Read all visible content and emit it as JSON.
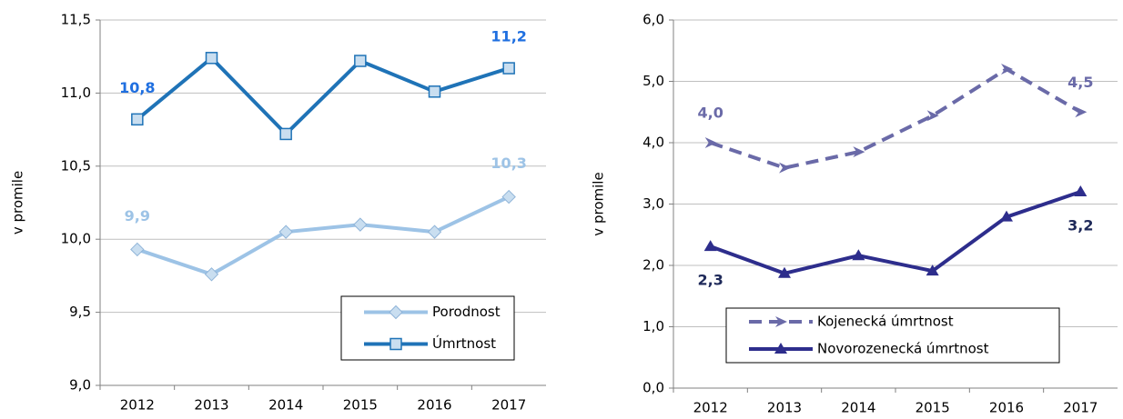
{
  "chart_data": [
    {
      "type": "line",
      "ylabel": "v promile",
      "categories": [
        "2012",
        "2013",
        "2014",
        "2015",
        "2016",
        "2017"
      ],
      "ylim": [
        9,
        11.5
      ],
      "yticks": [
        {
          "value": 9,
          "label": "9,0"
        },
        {
          "value": 9.5,
          "label": "9,5"
        },
        {
          "value": 10,
          "label": "10,0"
        },
        {
          "value": 10.5,
          "label": "10,5"
        },
        {
          "value": 11,
          "label": "11,0"
        },
        {
          "value": 11.5,
          "label": "11,5"
        }
      ],
      "grid": true,
      "legend": "lower right",
      "series": [
        {
          "name": "Porodnost",
          "color": "#9dc3e6",
          "marker": "diamond",
          "dashed": false,
          "values": [
            9.93,
            9.76,
            10.05,
            10.1,
            10.05,
            10.29
          ],
          "value_labels": [
            "9,9",
            null,
            null,
            null,
            null,
            "10,3"
          ]
        },
        {
          "name": "Úmrtnost",
          "color": "#1f73b7",
          "marker": "square",
          "dashed": false,
          "values": [
            10.82,
            11.24,
            10.72,
            11.22,
            11.01,
            11.17
          ],
          "value_labels": [
            "10,8",
            null,
            null,
            null,
            null,
            "11,2"
          ]
        }
      ]
    },
    {
      "type": "line",
      "ylabel": "v promile",
      "categories": [
        "2012",
        "2013",
        "2014",
        "2015",
        "2016",
        "2017"
      ],
      "ylim": [
        0,
        6
      ],
      "yticks": [
        {
          "value": 0,
          "label": "0,0"
        },
        {
          "value": 1,
          "label": "1,0"
        },
        {
          "value": 2,
          "label": "2,0"
        },
        {
          "value": 3,
          "label": "3,0"
        },
        {
          "value": 4,
          "label": "4,0"
        },
        {
          "value": 5,
          "label": "5,0"
        },
        {
          "value": 6,
          "label": "6,0"
        }
      ],
      "grid": true,
      "legend": "lower left",
      "series": [
        {
          "name": "Kojenecká úmrtnost",
          "color": "#6a6aa8",
          "marker": "arrow",
          "dashed": true,
          "values": [
            4.0,
            3.59,
            3.85,
            4.44,
            5.2,
            4.5
          ],
          "value_labels": [
            "4,0",
            null,
            null,
            null,
            null,
            "4,5"
          ]
        },
        {
          "name": "Novorozenecká úmrtnost",
          "color": "#2d2d8c",
          "marker": "triangle",
          "dashed": false,
          "values": [
            2.31,
            1.87,
            2.16,
            1.91,
            2.79,
            3.2
          ],
          "value_labels": [
            "2,3",
            null,
            null,
            null,
            null,
            "3,2"
          ]
        }
      ]
    }
  ]
}
